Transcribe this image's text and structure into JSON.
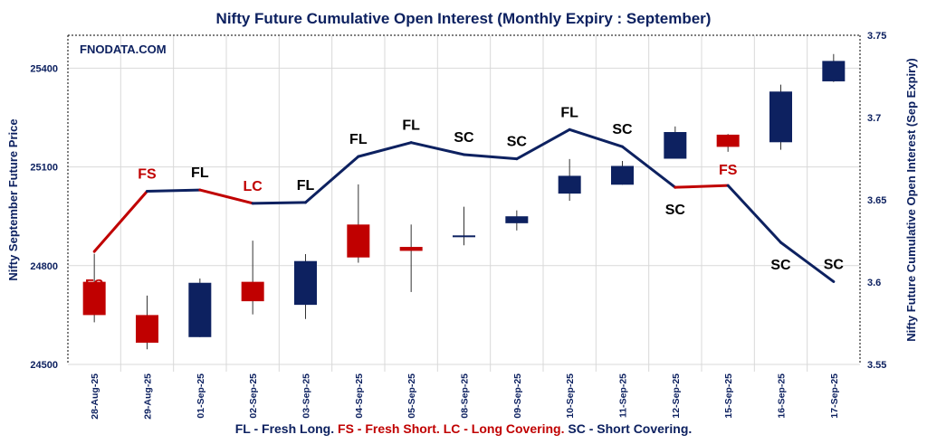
{
  "chart_data": {
    "type": "candlestick-with-line",
    "title": "Nifty Future Cumulative Open Interest (Monthly Expiry : September)",
    "watermark": "FNODATA.COM",
    "ylabel_left": "Nifty September Future Price",
    "ylabel_right": "Nifty Future Cumulative Open Interest (Sep Expiry)",
    "ylim_left": [
      24500,
      25500
    ],
    "yticks_left": [
      24500,
      24800,
      25100,
      25400
    ],
    "ylim_right": [
      3.55,
      3.75
    ],
    "yticks_right": [
      "3.55",
      "3.6",
      "3.65",
      "3.7",
      "3.75"
    ],
    "grid": true,
    "categories": [
      "28-Aug-25",
      "29-Aug-25",
      "01-Sep-25",
      "02-Sep-25",
      "03-Sep-25",
      "04-Sep-25",
      "05-Sep-25",
      "08-Sep-25",
      "09-Sep-25",
      "10-Sep-25",
      "11-Sep-25",
      "12-Sep-25",
      "15-Sep-25",
      "16-Sep-25",
      "17-Sep-25"
    ],
    "candles": [
      {
        "open": 24751,
        "high": 24836,
        "low": 24628,
        "close": 24650
      },
      {
        "open": 24650,
        "high": 24709,
        "low": 24546,
        "close": 24566
      },
      {
        "open": 24583,
        "high": 24761,
        "low": 24583,
        "close": 24748
      },
      {
        "open": 24751,
        "high": 24876,
        "low": 24652,
        "close": 24692
      },
      {
        "open": 24681,
        "high": 24835,
        "low": 24638,
        "close": 24814
      },
      {
        "open": 24925,
        "high": 25047,
        "low": 24809,
        "close": 24825
      },
      {
        "open": 24857,
        "high": 24925,
        "low": 24720,
        "close": 24845
      },
      {
        "open": 24890,
        "high": 24979,
        "low": 24862,
        "close": 24892
      },
      {
        "open": 24929,
        "high": 24968,
        "low": 24907,
        "close": 24950
      },
      {
        "open": 25019,
        "high": 25124,
        "low": 24997,
        "close": 25073
      },
      {
        "open": 25046,
        "high": 25118,
        "low": 25046,
        "close": 25103
      },
      {
        "open": 25125,
        "high": 25223,
        "low": 25125,
        "close": 25206
      },
      {
        "open": 25198,
        "high": 25200,
        "low": 25146,
        "close": 25161
      },
      {
        "open": 25175,
        "high": 25350,
        "low": 25152,
        "close": 25329
      },
      {
        "open": 25360,
        "high": 25443,
        "low": 25358,
        "close": 25422
      }
    ],
    "open_interest": [
      3.6186,
      3.6552,
      3.656,
      3.6479,
      3.6484,
      3.6763,
      3.6848,
      3.6775,
      3.6749,
      3.6927,
      3.6823,
      3.6576,
      3.6587,
      3.6241,
      3.6003
    ],
    "annotations": [
      {
        "text": "FS",
        "placement": "above"
      },
      {
        "text": "FS",
        "placement": "above"
      },
      {
        "text": "FL",
        "placement": "above"
      },
      {
        "text": "LC",
        "placement": "above"
      },
      {
        "text": "FL",
        "placement": "above"
      },
      {
        "text": "FL",
        "placement": "above"
      },
      {
        "text": "FL",
        "placement": "above"
      },
      {
        "text": "SC",
        "placement": "above"
      },
      {
        "text": "SC",
        "placement": "above"
      },
      {
        "text": "FL",
        "placement": "above"
      },
      {
        "text": "SC",
        "placement": "above"
      },
      {
        "text": "SC",
        "placement": "below"
      },
      {
        "text": "FS",
        "placement": "above"
      },
      {
        "text": "SC",
        "placement": "below"
      },
      {
        "text": "SC",
        "placement": "above"
      }
    ],
    "colors": {
      "bullish": "#0d2160",
      "bearish": "#c00000",
      "line": "#0d2160",
      "line_bearish": "#c00000",
      "text": "#0d2160",
      "grid": "#d9d9d9",
      "label_default": "#000000"
    },
    "legend": [
      {
        "text": "FL - Fresh Long.",
        "color": "#0d2160"
      },
      {
        "text": "FS - Fresh Short. LC - Long Covering.",
        "color": "#c00000"
      },
      {
        "text": "SC - Short Covering.",
        "color": "#0d2160"
      }
    ],
    "legend_placement": "bottom"
  }
}
